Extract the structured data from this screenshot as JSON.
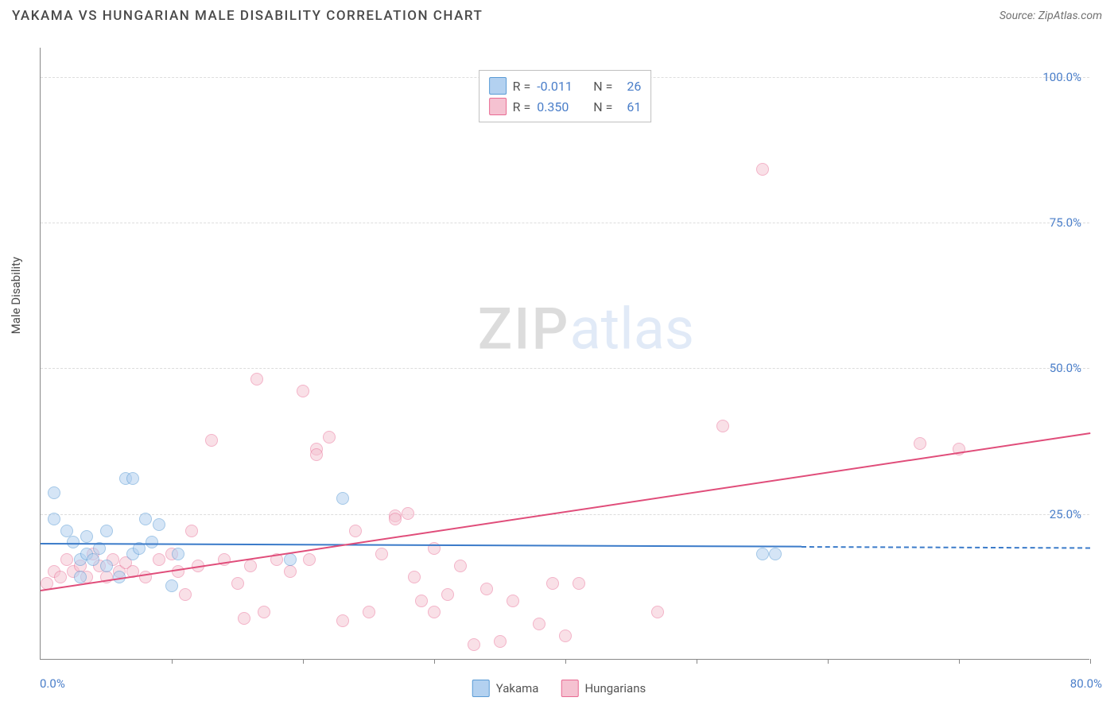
{
  "header": {
    "title": "YAKAMA VS HUNGARIAN MALE DISABILITY CORRELATION CHART",
    "source": "Source: ZipAtlas.com"
  },
  "chart": {
    "type": "scatter",
    "ylabel": "Male Disability",
    "xlim": [
      0,
      80
    ],
    "ylim": [
      0,
      105
    ],
    "xtick_positions": [
      10,
      20,
      30,
      40,
      50,
      60,
      70,
      80
    ],
    "xlabel_min": "0.0%",
    "xlabel_max": "80.0%",
    "ytick_labels": [
      "25.0%",
      "50.0%",
      "75.0%",
      "100.0%"
    ],
    "ytick_values": [
      25,
      50,
      75,
      100
    ],
    "grid_color": "#dddddd",
    "axis_color": "#888888",
    "label_color": "#4a7ec9",
    "background_color": "#ffffff",
    "marker_radius": 8,
    "marker_stroke_width": 1.5,
    "series": {
      "yakama": {
        "label": "Yakama",
        "fill": "#b3d1f0",
        "stroke": "#5a9bd5",
        "fill_opacity": 0.55,
        "R": "-0.011",
        "N": "26",
        "trend": {
          "x1": 0,
          "y1": 20,
          "x2": 58,
          "y2": 19.5,
          "dash_x2": 80,
          "dash_y2": 19.3,
          "color": "#3b7bc9"
        },
        "points": [
          [
            1,
            28.5
          ],
          [
            1,
            24
          ],
          [
            2,
            22
          ],
          [
            2.5,
            20
          ],
          [
            3,
            17
          ],
          [
            3,
            14
          ],
          [
            3.5,
            18
          ],
          [
            3.5,
            21
          ],
          [
            4,
            17
          ],
          [
            4.5,
            19
          ],
          [
            5,
            16
          ],
          [
            5,
            22
          ],
          [
            6,
            14
          ],
          [
            6.5,
            31
          ],
          [
            7,
            31
          ],
          [
            7,
            18
          ],
          [
            7.5,
            19
          ],
          [
            8,
            24
          ],
          [
            8.5,
            20
          ],
          [
            9,
            23
          ],
          [
            10,
            12.5
          ],
          [
            10.5,
            18
          ],
          [
            19,
            17
          ],
          [
            23,
            27.5
          ],
          [
            55,
            18
          ],
          [
            56,
            18
          ]
        ]
      },
      "hungarians": {
        "label": "Hungarians",
        "fill": "#f5c2d1",
        "stroke": "#e86a92",
        "fill_opacity": 0.5,
        "R": "0.350",
        "N": "61",
        "trend": {
          "x1": 0,
          "y1": 12,
          "x2": 80,
          "y2": 39,
          "color": "#e04d7a"
        },
        "points": [
          [
            0.5,
            13
          ],
          [
            1,
            15
          ],
          [
            1.5,
            14
          ],
          [
            2,
            17
          ],
          [
            2.5,
            15
          ],
          [
            3,
            16
          ],
          [
            3.5,
            14
          ],
          [
            4,
            18
          ],
          [
            4.5,
            16
          ],
          [
            5,
            14
          ],
          [
            5.5,
            17
          ],
          [
            6,
            15
          ],
          [
            6.5,
            16.5
          ],
          [
            7,
            15
          ],
          [
            8,
            14
          ],
          [
            9,
            17
          ],
          [
            10,
            18
          ],
          [
            10.5,
            15
          ],
          [
            11,
            11
          ],
          [
            11.5,
            22
          ],
          [
            12,
            16
          ],
          [
            13,
            37.5
          ],
          [
            14,
            17
          ],
          [
            15,
            13
          ],
          [
            15.5,
            7
          ],
          [
            16,
            16
          ],
          [
            16.5,
            48
          ],
          [
            17,
            8
          ],
          [
            18,
            17
          ],
          [
            19,
            15
          ],
          [
            20,
            46
          ],
          [
            20.5,
            17
          ],
          [
            21,
            36
          ],
          [
            21,
            35
          ],
          [
            22,
            38
          ],
          [
            23,
            6.5
          ],
          [
            24,
            22
          ],
          [
            25,
            8
          ],
          [
            26,
            18
          ],
          [
            27,
            24.5
          ],
          [
            27,
            24
          ],
          [
            28,
            25
          ],
          [
            28.5,
            14
          ],
          [
            29,
            10
          ],
          [
            30,
            19
          ],
          [
            30,
            8
          ],
          [
            31,
            11
          ],
          [
            32,
            16
          ],
          [
            33,
            2.5
          ],
          [
            34,
            12
          ],
          [
            35,
            3
          ],
          [
            36,
            10
          ],
          [
            38,
            6
          ],
          [
            39,
            13
          ],
          [
            40,
            4
          ],
          [
            41,
            13
          ],
          [
            47,
            8
          ],
          [
            52,
            40
          ],
          [
            55,
            84
          ],
          [
            67,
            37
          ],
          [
            70,
            36
          ]
        ]
      }
    },
    "watermark": {
      "zip": "ZIP",
      "atlas": "atlas"
    }
  }
}
